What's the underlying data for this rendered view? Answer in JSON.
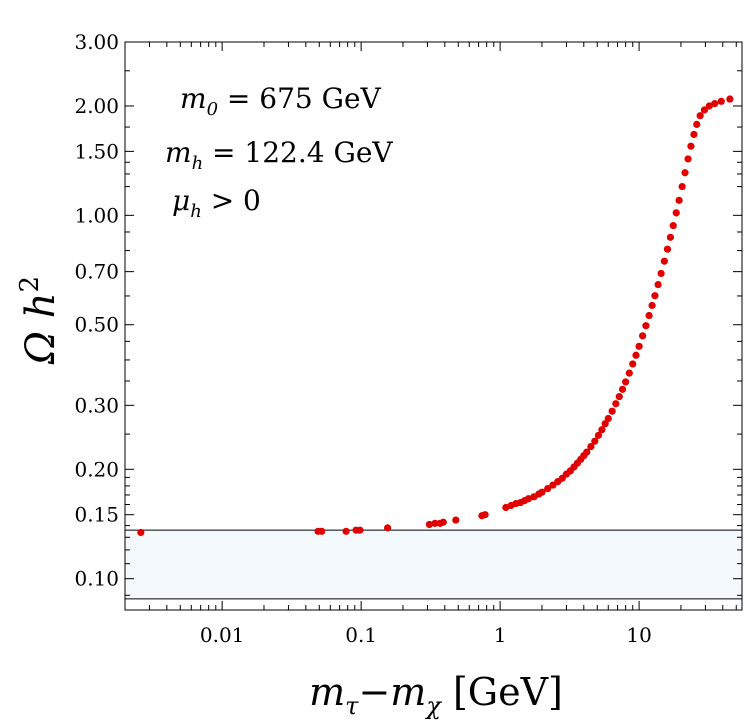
{
  "chart_data": {
    "type": "scatter",
    "x_scale": "log",
    "y_scale": "log",
    "xlim": [
      0.002,
      55
    ],
    "ylim": [
      0.082,
      3.0
    ],
    "xlabel_parts": [
      "m",
      "τ",
      "−m",
      "χ",
      " [GeV]"
    ],
    "ylabel_parts": [
      "Ω h",
      "2"
    ],
    "x_ticks": [
      {
        "value": 0.01,
        "label": "0.01"
      },
      {
        "value": 0.1,
        "label": "0.1"
      },
      {
        "value": 1,
        "label": "1"
      },
      {
        "value": 10,
        "label": "10"
      }
    ],
    "y_ticks": [
      {
        "value": 0.1,
        "label": "0.10"
      },
      {
        "value": 0.15,
        "label": "0.15"
      },
      {
        "value": 0.2,
        "label": "0.20"
      },
      {
        "value": 0.3,
        "label": "0.30"
      },
      {
        "value": 0.5,
        "label": "0.50"
      },
      {
        "value": 0.7,
        "label": "0.70"
      },
      {
        "value": 1.0,
        "label": "1.00"
      },
      {
        "value": 1.5,
        "label": "1.50"
      },
      {
        "value": 2.0,
        "label": "2.00"
      },
      {
        "value": 3.0,
        "label": "3.00"
      }
    ],
    "band": {
      "ymin": 0.088,
      "ymax": 0.136,
      "color": "#f3f9fd"
    },
    "annotations": [
      {
        "parts": [
          "m",
          "0",
          " = 675 GeV"
        ]
      },
      {
        "parts": [
          "m",
          "h",
          " = 122.4 GeV"
        ]
      },
      {
        "parts": [
          "μ",
          "h",
          " > 0"
        ]
      }
    ],
    "point_color": "#e00000",
    "series": [
      {
        "points": [
          [
            0.0026,
            0.134
          ],
          [
            0.049,
            0.135
          ],
          [
            0.052,
            0.135
          ],
          [
            0.078,
            0.135
          ],
          [
            0.092,
            0.136
          ],
          [
            0.098,
            0.136
          ],
          [
            0.155,
            0.138
          ],
          [
            0.31,
            0.141
          ],
          [
            0.34,
            0.142
          ],
          [
            0.37,
            0.142
          ],
          [
            0.39,
            0.143
          ],
          [
            0.48,
            0.145
          ],
          [
            0.74,
            0.149
          ],
          [
            0.78,
            0.15
          ],
          [
            1.1,
            0.157
          ],
          [
            1.2,
            0.159
          ],
          [
            1.3,
            0.161
          ],
          [
            1.4,
            0.162
          ],
          [
            1.5,
            0.164
          ],
          [
            1.6,
            0.166
          ],
          [
            1.75,
            0.168
          ],
          [
            1.9,
            0.171
          ],
          [
            2.0,
            0.173
          ],
          [
            2.2,
            0.177
          ],
          [
            2.4,
            0.181
          ],
          [
            2.6,
            0.185
          ],
          [
            2.8,
            0.189
          ],
          [
            3.0,
            0.194
          ],
          [
            3.2,
            0.198
          ],
          [
            3.4,
            0.203
          ],
          [
            3.6,
            0.208
          ],
          [
            3.8,
            0.213
          ],
          [
            4.0,
            0.218
          ],
          [
            4.2,
            0.223
          ],
          [
            4.5,
            0.231
          ],
          [
            4.8,
            0.239
          ],
          [
            5.1,
            0.248
          ],
          [
            5.4,
            0.257
          ],
          [
            5.7,
            0.267
          ],
          [
            6.0,
            0.276
          ],
          [
            6.4,
            0.289
          ],
          [
            6.8,
            0.303
          ],
          [
            7.2,
            0.317
          ],
          [
            7.6,
            0.332
          ],
          [
            8.0,
            0.348
          ],
          [
            8.5,
            0.368
          ],
          [
            9.0,
            0.39
          ],
          [
            9.5,
            0.412
          ],
          [
            10.0,
            0.436
          ],
          [
            10.6,
            0.466
          ],
          [
            11.2,
            0.497
          ],
          [
            11.8,
            0.53
          ],
          [
            12.4,
            0.565
          ],
          [
            13.0,
            0.601
          ],
          [
            13.7,
            0.645
          ],
          [
            14.4,
            0.692
          ],
          [
            15.2,
            0.748
          ],
          [
            16.0,
            0.807
          ],
          [
            16.8,
            0.87
          ],
          [
            17.6,
            0.937
          ],
          [
            18.5,
            1.016
          ],
          [
            19.4,
            1.1
          ],
          [
            20.4,
            1.2
          ],
          [
            21.4,
            1.31
          ],
          [
            22.5,
            1.43
          ],
          [
            23.6,
            1.55
          ],
          [
            24.8,
            1.67
          ],
          [
            26.0,
            1.78
          ],
          [
            27.5,
            1.88
          ],
          [
            29.5,
            1.95
          ],
          [
            32.0,
            2.0
          ],
          [
            35.0,
            2.03
          ],
          [
            39.0,
            2.06
          ],
          [
            45.0,
            2.09
          ]
        ]
      }
    ]
  }
}
